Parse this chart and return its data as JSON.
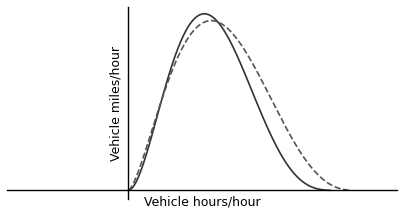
{
  "title": "",
  "xlabel": "Vehicle hours/hour",
  "ylabel": "Vehicle miles/hour",
  "background_color": "#ffffff",
  "line_color_solid": "#333333",
  "line_color_dashed": "#555555",
  "xlabel_fontsize": 9,
  "ylabel_fontsize": 9,
  "linewidth": 1.2
}
